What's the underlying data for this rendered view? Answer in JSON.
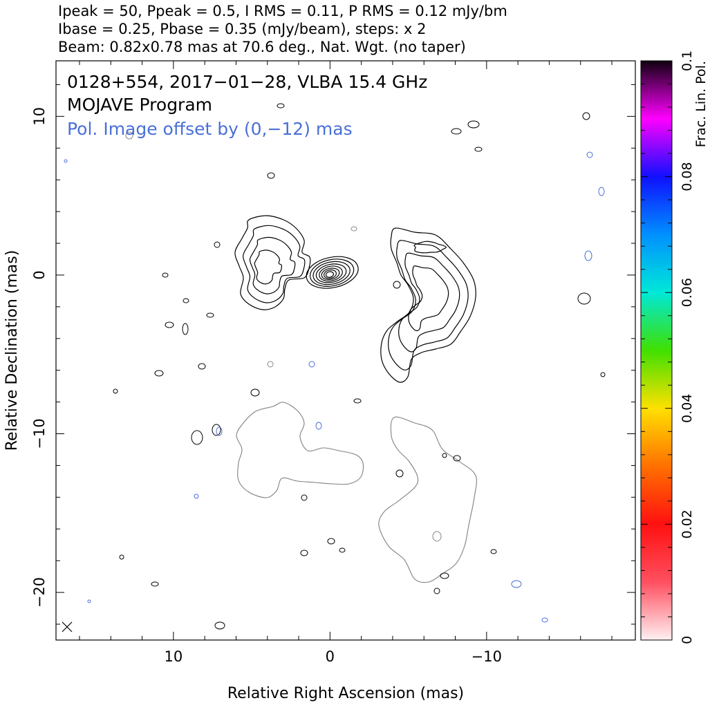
{
  "header": {
    "line1": "Ipeak = 50, Ppeak = 0.5, I RMS = 0.11, P RMS = 0.12 mJy/bm",
    "line2": "Ibase = 0.25, Pbase = 0.35 (mJy/beam), steps: x 2",
    "line3": "Beam: 0.82x0.78 mas at 70.6 deg., Nat. Wgt. (no taper)"
  },
  "annotations": {
    "source": "0128+554, 2017−01−28, VLBA 15.4 GHz",
    "program": "MOJAVE Program",
    "offset_note": "Pol. Image offset by (0,−12) mas"
  },
  "colors": {
    "stokes_i_contours": "#000000",
    "pol_contours": "#808080",
    "pol_annotation": "#4a6fd6"
  },
  "chart_data": {
    "type": "contour",
    "xlabel": "Relative Right Ascension (mas)",
    "ylabel": "Relative Declination (mas)",
    "xlim": [
      17.5,
      -19.5
    ],
    "ylim": [
      -23,
      13.5
    ],
    "x_inverted": true,
    "x_ticks": [
      {
        "value": 10,
        "label": "10"
      },
      {
        "value": 0,
        "label": "0"
      },
      {
        "value": -10,
        "label": "−10"
      }
    ],
    "y_ticks": [
      {
        "value": 10,
        "label": "10"
      },
      {
        "value": 0,
        "label": "0"
      },
      {
        "value": -10,
        "label": "−10"
      },
      {
        "value": -20,
        "label": "−20"
      }
    ],
    "colorbar": {
      "label": "Frac. Lin. Pol.",
      "range": [
        0,
        0.1
      ],
      "ticks": [
        {
          "value": 0,
          "label": "0"
        },
        {
          "value": 0.02,
          "label": "0.02"
        },
        {
          "value": 0.04,
          "label": "0.04"
        },
        {
          "value": 0.06,
          "label": "0.06"
        },
        {
          "value": 0.08,
          "label": "0.08"
        },
        {
          "value": 0.1,
          "label": "0.1"
        }
      ]
    },
    "stokes_i": {
      "ipeak_mjy_per_beam": 50,
      "ibase_mjy_per_beam": 0.25,
      "rms_mjy_per_beam": 0.11,
      "core_center": [
        0,
        0
      ],
      "core_levels": 8,
      "west_lobe_center": [
        -6.5,
        -2.5
      ],
      "east_lobe_center": [
        4.5,
        1.5
      ]
    },
    "polarization": {
      "ppeak_mjy_per_beam": 0.5,
      "pbase_mjy_per_beam": 0.35,
      "rms_mjy_per_beam": 0.12,
      "offset_mas": [
        0,
        -12
      ]
    },
    "beam": {
      "major_mas": 0.82,
      "minor_mas": 0.78,
      "pa_deg": 70.6
    },
    "weighting": "Nat. Wgt. (no taper)"
  }
}
